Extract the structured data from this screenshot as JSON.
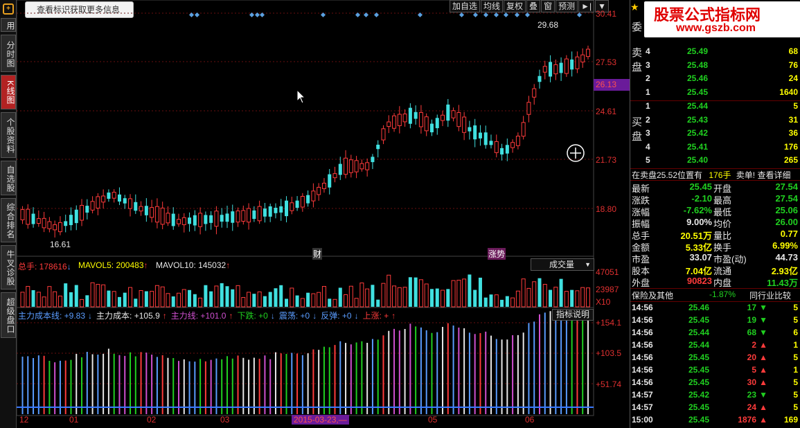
{
  "tooltip": "查看标识获取更多信息",
  "toolbar": [
    "加自选",
    "均线",
    "复权",
    "叠",
    "窗",
    "预测",
    "►|",
    "▼"
  ],
  "leftnav": [
    {
      "label": "用",
      "active": false
    },
    {
      "label": "分时图",
      "active": false
    },
    {
      "label": "K线图",
      "active": true
    },
    {
      "label": "个股资料",
      "active": false
    },
    {
      "label": "自选股",
      "active": false
    },
    {
      "label": "综合排名",
      "active": false
    },
    {
      "label": "牛叉诊股",
      "active": false
    },
    {
      "label": "超级盘口",
      "active": false
    }
  ],
  "price_axis": [
    "30.41",
    "27.53",
    "24.61",
    "21.73",
    "18.80"
  ],
  "current_price_marker": "26.13",
  "chart_annotations": {
    "high_label": "29.68",
    "low_label": "16.61",
    "event1": "财",
    "event2": "涨势"
  },
  "volume_panel": {
    "total_label": "总手: 178616",
    "mavol5": "MAVOL5: 200483",
    "mavol10": "MAVOL10: 145032",
    "selector": "成交量",
    "axis": [
      "47051",
      "23987"
    ],
    "unit": "X10"
  },
  "indicator_panel": {
    "items": [
      {
        "text": "主力成本线: +9.83",
        "color": "#5a9cff"
      },
      {
        "text": "主力成本: +105.9",
        "color": "#e8e8e8"
      },
      {
        "text": "主力线: +101.0",
        "color": "#d050d0"
      },
      {
        "text": "下跌: +0",
        "color": "#20d020"
      },
      {
        "text": "震荡: +0",
        "color": "#5a9cff"
      },
      {
        "text": "反弹: +0",
        "color": "#5a9cff"
      },
      {
        "text": "上涨: +",
        "color": "#ff3b3b"
      }
    ],
    "button": "指标说明",
    "axis": [
      "+154.1",
      "+103.5",
      "+51.74"
    ]
  },
  "date_axis": [
    "12",
    "01",
    "02",
    "03",
    "05",
    "06"
  ],
  "date_cursor": "2015-03-23,—",
  "watermark": {
    "line1": "股票公式指标网",
    "line2": "www.gszb.com"
  },
  "right_panel": {
    "title_char": "委",
    "sell_label": "卖盘",
    "buy_label": "买盘",
    "sell": [
      {
        "level": "4",
        "price": "25.49",
        "vol": "68"
      },
      {
        "level": "3",
        "price": "25.48",
        "vol": "76"
      },
      {
        "level": "2",
        "price": "25.46",
        "vol": "24"
      },
      {
        "level": "1",
        "price": "25.45",
        "vol": "1640"
      }
    ],
    "buy": [
      {
        "level": "1",
        "price": "25.44",
        "vol": "5"
      },
      {
        "level": "2",
        "price": "25.43",
        "vol": "31"
      },
      {
        "level": "3",
        "price": "25.42",
        "vol": "36"
      },
      {
        "level": "4",
        "price": "25.41",
        "vol": "176"
      },
      {
        "level": "5",
        "price": "25.40",
        "vol": "265"
      }
    ],
    "notice": {
      "text1": "在卖盘25.52位置有",
      "text2": "176手",
      "text3": "卖单!",
      "link": "查看详细"
    },
    "quotes": [
      {
        "l": "最新",
        "v": "25.45",
        "vc": "green",
        "l2": "开盘",
        "v2": "27.54",
        "v2c": "green"
      },
      {
        "l": "涨跌",
        "v": "-2.10",
        "vc": "green",
        "l2": "最高",
        "v2": "27.54",
        "v2c": "green"
      },
      {
        "l": "涨幅",
        "v": "-7.62%",
        "vc": "green",
        "l2": "最低",
        "v2": "25.06",
        "v2c": "green"
      },
      {
        "l": "振幅",
        "v": "9.00%",
        "vc": "white",
        "l2": "均价",
        "v2": "26.00",
        "v2c": "green"
      },
      {
        "l": "总手",
        "v": "20.51万",
        "vc": "yellow",
        "l2": "量比",
        "v2": "0.77",
        "v2c": "yellow"
      },
      {
        "l": "金额",
        "v": "5.33亿",
        "vc": "yellow",
        "l2": "换手",
        "v2": "6.99%",
        "v2c": "yellow"
      },
      {
        "l": "市盈",
        "v": "33.07",
        "vc": "white",
        "l2": "市盈(动)",
        "v2": "44.73",
        "v2c": "white"
      },
      {
        "l": "股本",
        "v": "7.04亿",
        "vc": "yellow",
        "l2": "流通",
        "v2": "2.93亿",
        "v2c": "yellow"
      },
      {
        "l": "外盘",
        "v": "90823",
        "vc": "red",
        "l2": "内盘",
        "v2": "11.43万",
        "v2c": "green"
      }
    ],
    "sector": {
      "name": "保险及其他",
      "change": "-1.87%",
      "link": "同行业比较"
    },
    "trades": [
      {
        "t": "14:56",
        "p": "25.46",
        "v": "17",
        "dir": "down",
        "n": "5"
      },
      {
        "t": "14:56",
        "p": "25.45",
        "v": "19",
        "dir": "down",
        "n": "5"
      },
      {
        "t": "14:56",
        "p": "25.44",
        "v": "68",
        "dir": "down",
        "n": "6"
      },
      {
        "t": "14:56",
        "p": "25.44",
        "v": "2",
        "dir": "up",
        "n": "1"
      },
      {
        "t": "14:56",
        "p": "25.45",
        "v": "20",
        "dir": "up",
        "n": "5"
      },
      {
        "t": "14:56",
        "p": "25.45",
        "v": "5",
        "dir": "up",
        "n": "1"
      },
      {
        "t": "14:56",
        "p": "25.45",
        "v": "30",
        "dir": "up",
        "n": "5"
      },
      {
        "t": "14:57",
        "p": "25.42",
        "v": "23",
        "dir": "down",
        "n": "5"
      },
      {
        "t": "14:57",
        "p": "25.45",
        "v": "24",
        "dir": "up",
        "n": "5"
      },
      {
        "t": "15:00",
        "p": "25.45",
        "v": "1876",
        "dir": "up",
        "n": "169"
      }
    ]
  }
}
